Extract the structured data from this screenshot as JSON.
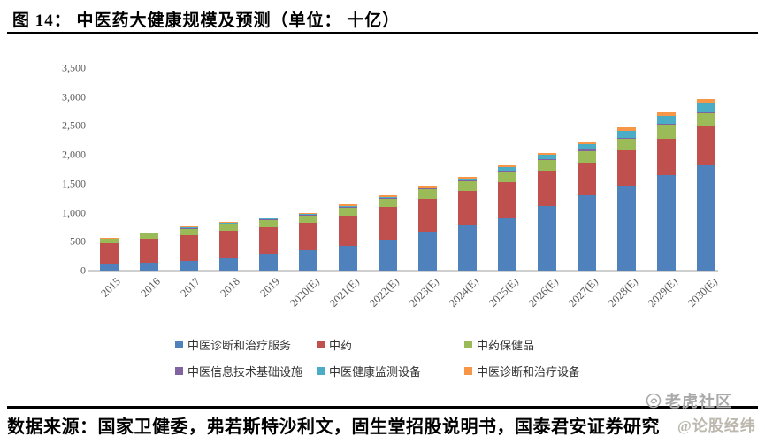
{
  "figure": {
    "title": "图 14： 中医药大健康规模及预测（单位： 十亿）",
    "source": "数据来源：国家卫健委，弗若斯特沙利文，固生堂招股说明书，国泰君安证券研究",
    "watermark": {
      "community": "老虎社区",
      "user": "@论股经纬",
      "logo_icon": "tiger-logo-icon"
    }
  },
  "chart_data": {
    "type": "bar",
    "stacked": true,
    "title": "中医药大健康规模及预测",
    "unit": "十亿",
    "xlabel": "",
    "ylabel": "",
    "ylim": [
      0,
      3500
    ],
    "yticks": [
      0,
      500,
      1000,
      1500,
      2000,
      2500,
      3000,
      3500
    ],
    "ytick_labels": [
      "0",
      "500",
      "1,000",
      "1,500",
      "2,000",
      "2,500",
      "3,000",
      "3,500"
    ],
    "grid": false,
    "legend_position": "bottom",
    "categories": [
      "2015",
      "2016",
      "2017",
      "2018",
      "2019",
      "2020(E)",
      "2021(E)",
      "2022(E)",
      "2023(E)",
      "2024(E)",
      "2025(E)",
      "2026(E)",
      "2027(E)",
      "2028(E)",
      "2029(E)",
      "2030(E)"
    ],
    "series": [
      {
        "name": "中医诊断和治疗服务",
        "color": "#4F81BD",
        "values": [
          110,
          135,
          165,
          220,
          295,
          345,
          430,
          530,
          670,
          800,
          915,
          1120,
          1310,
          1465,
          1645,
          1835
        ]
      },
      {
        "name": "中药",
        "color": "#C0504D",
        "values": [
          365,
          415,
          445,
          465,
          455,
          475,
          525,
          570,
          572,
          575,
          620,
          600,
          555,
          610,
          630,
          660
        ]
      },
      {
        "name": "中药保健品",
        "color": "#9BBB59",
        "values": [
          80,
          95,
          125,
          130,
          135,
          138,
          140,
          150,
          162,
          172,
          182,
          188,
          205,
          205,
          240,
          222
        ]
      },
      {
        "name": "中医信息技术基础设施",
        "color": "#8064A2",
        "values": [
          4,
          5,
          6,
          8,
          8,
          9,
          9,
          10,
          11,
          12,
          13,
          15,
          17,
          20,
          20,
          22
        ]
      },
      {
        "name": "中医健康监测设备",
        "color": "#4BACC6",
        "values": [
          3,
          4,
          5,
          6,
          8,
          10,
          12,
          14,
          16,
          38,
          55,
          72,
          100,
          120,
          140,
          168
        ]
      },
      {
        "name": "中医诊断和治疗设备",
        "color": "#F79646",
        "values": [
          8,
          10,
          14,
          17,
          20,
          22,
          25,
          28,
          30,
          30,
          28,
          40,
          45,
          62,
          62,
          65
        ]
      }
    ],
    "totals": [
      570,
      664,
      760,
      846,
      921,
      999,
      1141,
      1302,
      1461,
      1627,
      1813,
      2035,
      2232,
      2482,
      2737,
      2972
    ]
  }
}
